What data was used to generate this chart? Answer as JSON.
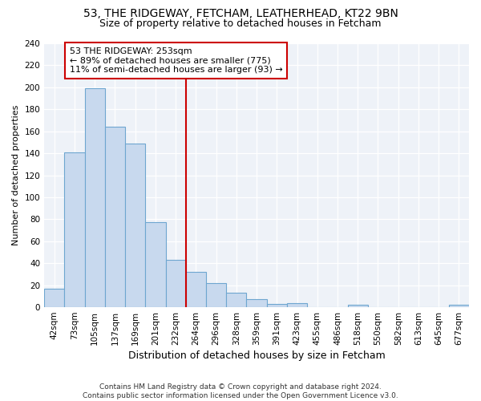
{
  "title1": "53, THE RIDGEWAY, FETCHAM, LEATHERHEAD, KT22 9BN",
  "title2": "Size of property relative to detached houses in Fetcham",
  "xlabel": "Distribution of detached houses by size in Fetcham",
  "ylabel": "Number of detached properties",
  "categories": [
    "42sqm",
    "73sqm",
    "105sqm",
    "137sqm",
    "169sqm",
    "201sqm",
    "232sqm",
    "264sqm",
    "296sqm",
    "328sqm",
    "359sqm",
    "391sqm",
    "423sqm",
    "455sqm",
    "486sqm",
    "518sqm",
    "550sqm",
    "582sqm",
    "613sqm",
    "645sqm",
    "677sqm"
  ],
  "values": [
    17,
    141,
    199,
    164,
    149,
    77,
    43,
    32,
    22,
    13,
    7,
    3,
    4,
    0,
    0,
    2,
    0,
    0,
    0,
    0,
    2
  ],
  "bar_color": "#c8d9ee",
  "bar_edgecolor": "#6ea6d0",
  "vline_color": "#cc0000",
  "annotation_text": "53 THE RIDGEWAY: 253sqm\n← 89% of detached houses are smaller (775)\n11% of semi-detached houses are larger (93) →",
  "annotation_box_edgecolor": "#cc0000",
  "annotation_box_facecolor": "#ffffff",
  "background_color": "#eef2f8",
  "grid_color": "#ffffff",
  "ylim": [
    0,
    240
  ],
  "yticks": [
    0,
    20,
    40,
    60,
    80,
    100,
    120,
    140,
    160,
    180,
    200,
    220,
    240
  ],
  "footer": "Contains HM Land Registry data © Crown copyright and database right 2024.\nContains public sector information licensed under the Open Government Licence v3.0.",
  "title1_fontsize": 10,
  "title2_fontsize": 9,
  "xlabel_fontsize": 9,
  "ylabel_fontsize": 8,
  "tick_fontsize": 7.5,
  "annotation_fontsize": 8,
  "footer_fontsize": 6.5,
  "vline_bar_index": 7
}
